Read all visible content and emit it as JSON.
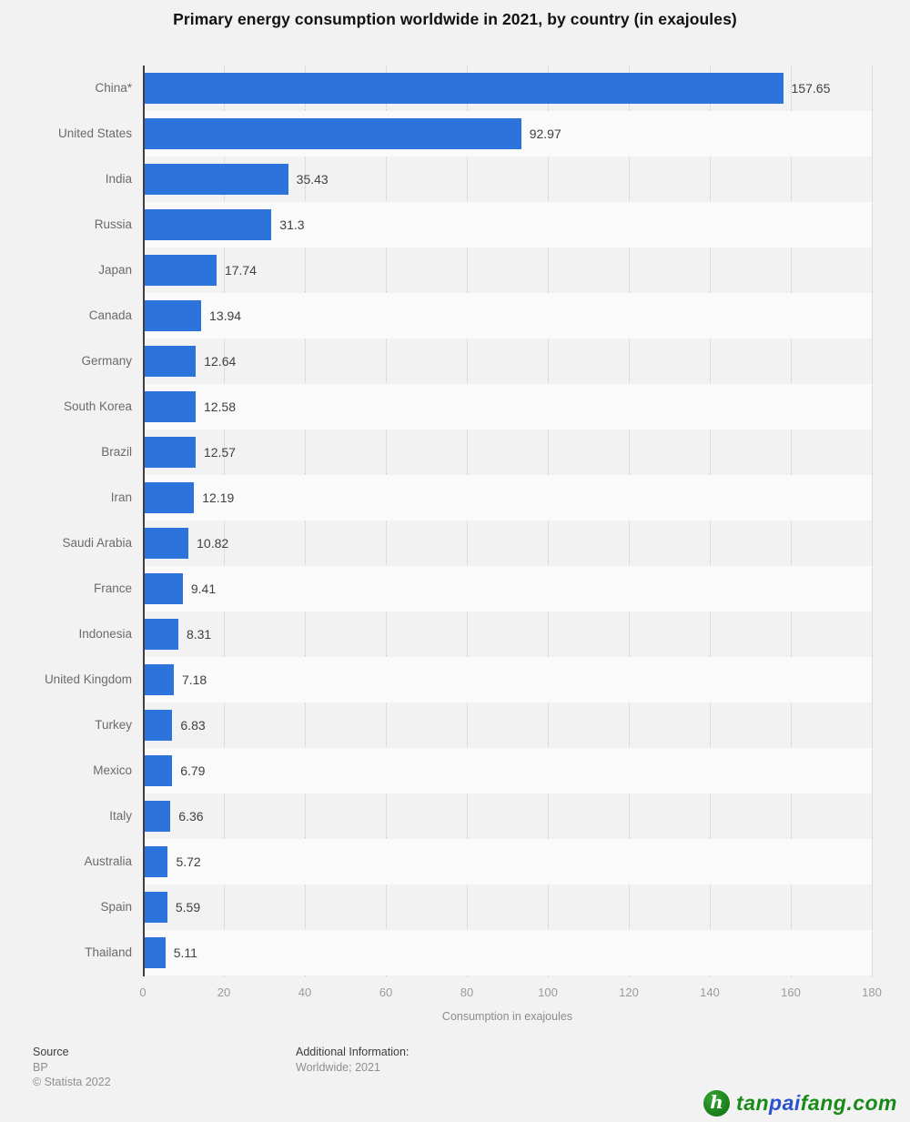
{
  "title": "Primary energy consumption worldwide in 2021, by country (in exajoules)",
  "chart_data": {
    "type": "bar",
    "orientation": "horizontal",
    "title": "Primary energy consumption worldwide in 2021, by country (in exajoules)",
    "categories": [
      "China*",
      "United States",
      "India",
      "Russia",
      "Japan",
      "Canada",
      "Germany",
      "South Korea",
      "Brazil",
      "Iran",
      "Saudi Arabia",
      "France",
      "Indonesia",
      "United Kingdom",
      "Turkey",
      "Mexico",
      "Italy",
      "Australia",
      "Spain",
      "Thailand"
    ],
    "values": [
      157.65,
      92.97,
      35.43,
      31.3,
      17.74,
      13.94,
      12.64,
      12.58,
      12.57,
      12.19,
      10.82,
      9.41,
      8.31,
      7.18,
      6.83,
      6.79,
      6.36,
      5.72,
      5.59,
      5.11
    ],
    "xlabel": "Consumption in exajoules",
    "ylabel": "",
    "xlim": [
      0,
      180
    ],
    "xticks": [
      0,
      20,
      40,
      60,
      80,
      100,
      120,
      140,
      160,
      180
    ],
    "grid": "vertical dotted gridlines at each x tick",
    "legend": "none",
    "bar_color": "#2d73dc",
    "row_band_color": "#fafafa",
    "background_color": "#f2f2f2"
  },
  "footer": {
    "source_label": "Source",
    "source_value": "BP",
    "copyright": "© Statista 2022",
    "additional_label": "Additional Information:",
    "additional_value": "Worldwide; 2021"
  },
  "logo": {
    "icon": "tanpaifang-leaf-icon",
    "icon_glyph": "h",
    "parts": [
      {
        "text": "tan",
        "color": "#178a17"
      },
      {
        "text": "pai",
        "color": "#2a52cc"
      },
      {
        "text": "fang.com",
        "color": "#178a17"
      }
    ]
  }
}
